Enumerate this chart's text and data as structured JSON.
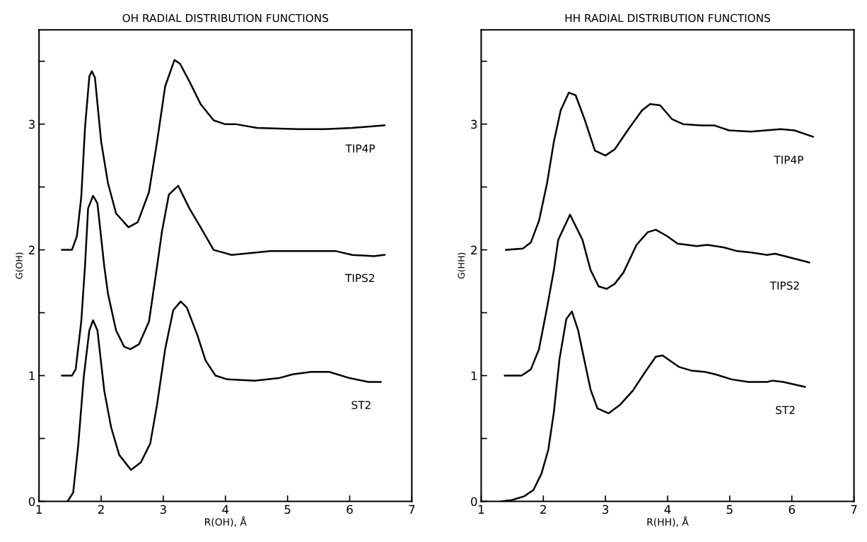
{
  "chart_data": [
    {
      "type": "line",
      "title": "OH RADIAL DISTRIBUTION FUNCTIONS",
      "xlabel": "R(OH), Å",
      "ylabel": "G(OH)",
      "xlim": [
        1,
        7
      ],
      "ylim": [
        0,
        3.75
      ],
      "xticks": [
        1,
        2,
        3,
        4,
        5,
        6,
        7
      ],
      "yticks": [
        0,
        {
          "value": 0.5,
          "label": null
        },
        1,
        {
          "value": 1.5,
          "label": null
        },
        2,
        {
          "value": 2.5,
          "label": null
        },
        3,
        {
          "value": 3.5,
          "label": null
        }
      ],
      "grid": false,
      "legend": false,
      "marker": "none",
      "line_style": "solid",
      "series": [
        {
          "name": "TIP4P",
          "color": "#000000",
          "x": [
            1.37,
            1.53,
            1.61,
            1.68,
            1.74,
            1.81,
            1.85,
            1.9,
            2.0,
            2.11,
            2.24,
            2.44,
            2.59,
            2.77,
            2.9,
            3.03,
            3.18,
            3.27,
            3.42,
            3.6,
            3.81,
            3.99,
            4.16,
            4.51,
            5.17,
            5.6,
            6.04,
            6.56
          ],
          "values": [
            2.0,
            2.0,
            2.11,
            2.42,
            2.97,
            3.38,
            3.42,
            3.37,
            2.86,
            2.53,
            2.29,
            2.18,
            2.22,
            2.46,
            2.86,
            3.3,
            3.51,
            3.48,
            3.34,
            3.16,
            3.03,
            3.0,
            3.0,
            2.97,
            2.96,
            2.96,
            2.97,
            2.99
          ]
        },
        {
          "name": "TIPS2",
          "color": "#000000",
          "x": [
            1.37,
            1.53,
            1.59,
            1.68,
            1.74,
            1.79,
            1.87,
            1.94,
            2.05,
            2.11,
            2.24,
            2.37,
            2.47,
            2.61,
            2.77,
            2.9,
            2.98,
            3.09,
            3.24,
            3.42,
            3.6,
            3.81,
            4.1,
            4.73,
            5.78,
            6.04,
            6.39,
            6.56
          ],
          "values": [
            1.0,
            1.0,
            1.05,
            1.43,
            1.87,
            2.33,
            2.43,
            2.37,
            1.87,
            1.65,
            1.36,
            1.23,
            1.21,
            1.25,
            1.43,
            1.87,
            2.15,
            2.44,
            2.51,
            2.33,
            2.18,
            2.0,
            1.96,
            1.99,
            1.99,
            1.96,
            1.95,
            1.96
          ]
        },
        {
          "name": "ST2",
          "color": "#000000",
          "x": [
            1.46,
            1.55,
            1.63,
            1.72,
            1.81,
            1.87,
            1.94,
            2.05,
            2.16,
            2.29,
            2.48,
            2.64,
            2.79,
            2.9,
            3.03,
            3.16,
            3.28,
            3.38,
            3.55,
            3.68,
            3.84,
            4.03,
            4.47,
            4.86,
            5.08,
            5.38,
            5.67,
            6.0,
            6.3,
            6.5
          ],
          "values": [
            0.0,
            0.07,
            0.44,
            0.99,
            1.36,
            1.44,
            1.36,
            0.88,
            0.59,
            0.37,
            0.25,
            0.31,
            0.46,
            0.77,
            1.21,
            1.52,
            1.59,
            1.54,
            1.32,
            1.12,
            1.0,
            0.97,
            0.96,
            0.98,
            1.01,
            1.03,
            1.03,
            0.98,
            0.95,
            0.95
          ]
        }
      ]
    },
    {
      "type": "line",
      "title": "HH RADIAL DISTRIBUTION FUNCTIONS",
      "xlabel": "R(HH), Å",
      "ylabel": "G(HH)",
      "xlim": [
        1,
        7
      ],
      "ylim": [
        0,
        3.75
      ],
      "xticks": [
        1,
        2,
        3,
        4,
        5,
        6,
        7
      ],
      "yticks": [
        0,
        {
          "value": 0.5,
          "label": null
        },
        1,
        {
          "value": 1.5,
          "label": null
        },
        2,
        {
          "value": 2.5,
          "label": null
        },
        3,
        {
          "value": 3.5,
          "label": null
        }
      ],
      "grid": false,
      "legend": false,
      "marker": "none",
      "line_style": "solid",
      "series": [
        {
          "name": "TIP4P",
          "color": "#000000",
          "x": [
            1.4,
            1.67,
            1.8,
            1.93,
            2.06,
            2.17,
            2.28,
            2.41,
            2.52,
            2.67,
            2.83,
            3.0,
            3.15,
            3.37,
            3.59,
            3.72,
            3.88,
            4.07,
            4.25,
            4.55,
            4.75,
            4.99,
            5.34,
            5.82,
            6.04,
            6.34
          ],
          "values": [
            2.0,
            2.01,
            2.06,
            2.23,
            2.53,
            2.86,
            3.11,
            3.25,
            3.23,
            3.03,
            2.79,
            2.75,
            2.8,
            2.96,
            3.11,
            3.16,
            3.15,
            3.04,
            3.0,
            2.99,
            2.99,
            2.95,
            2.94,
            2.96,
            2.95,
            2.9
          ]
        },
        {
          "name": "TIPS2",
          "color": "#000000",
          "x": [
            1.38,
            1.65,
            1.8,
            1.93,
            2.06,
            2.17,
            2.24,
            2.43,
            2.63,
            2.76,
            2.89,
            3.02,
            3.15,
            3.29,
            3.5,
            3.68,
            3.81,
            3.99,
            4.16,
            4.47,
            4.64,
            4.9,
            5.12,
            5.34,
            5.6,
            5.73,
            6.04,
            6.28
          ],
          "values": [
            1.0,
            1.0,
            1.05,
            1.21,
            1.54,
            1.84,
            2.08,
            2.28,
            2.08,
            1.84,
            1.71,
            1.69,
            1.73,
            1.82,
            2.04,
            2.14,
            2.16,
            2.11,
            2.05,
            2.03,
            2.04,
            2.02,
            1.99,
            1.98,
            1.96,
            1.97,
            1.93,
            1.9
          ]
        },
        {
          "name": "ST2",
          "color": "#000000",
          "x": [
            1.32,
            1.49,
            1.69,
            1.84,
            1.97,
            2.08,
            2.17,
            2.26,
            2.37,
            2.46,
            2.56,
            2.67,
            2.76,
            2.87,
            3.05,
            3.24,
            3.44,
            3.64,
            3.81,
            3.92,
            4.18,
            4.38,
            4.6,
            4.77,
            5.03,
            5.3,
            5.6,
            5.69,
            5.86,
            6.21
          ],
          "values": [
            0.0,
            0.01,
            0.04,
            0.09,
            0.22,
            0.41,
            0.71,
            1.13,
            1.45,
            1.51,
            1.36,
            1.1,
            0.89,
            0.74,
            0.7,
            0.77,
            0.88,
            1.03,
            1.15,
            1.16,
            1.07,
            1.04,
            1.03,
            1.01,
            0.97,
            0.95,
            0.95,
            0.96,
            0.95,
            0.91
          ]
        }
      ]
    }
  ]
}
